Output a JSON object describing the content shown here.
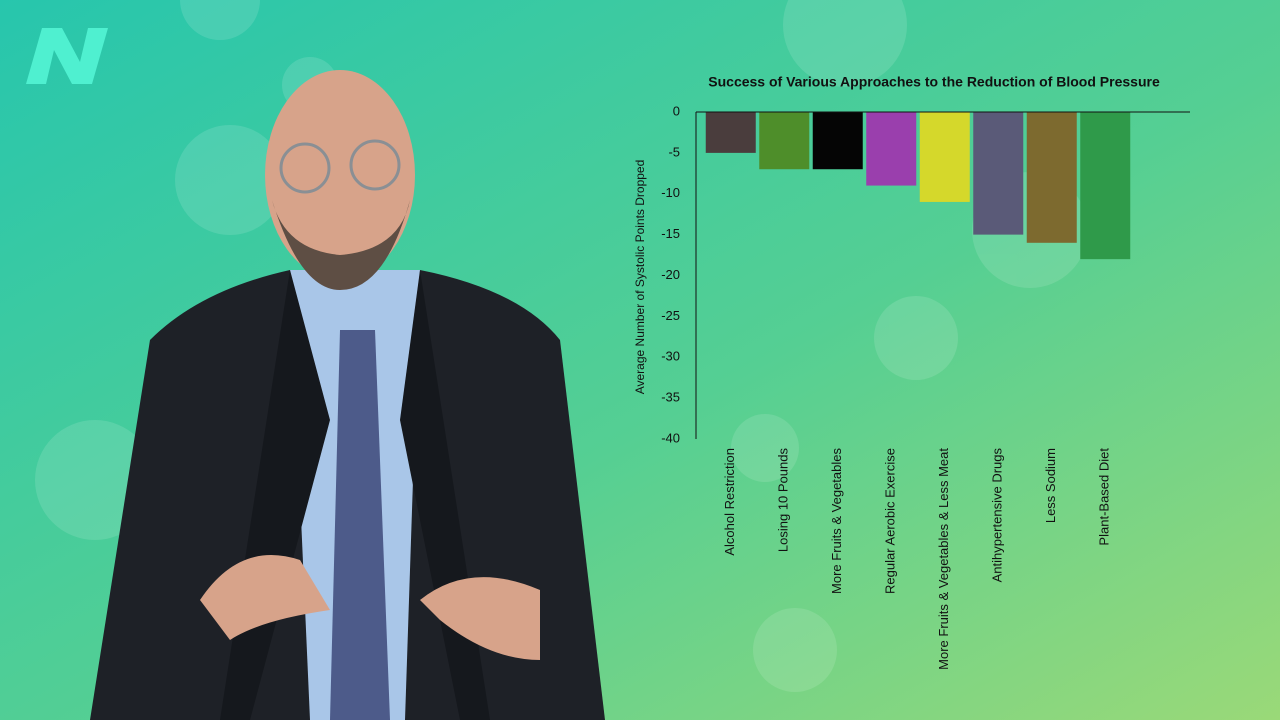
{
  "chart_data": {
    "type": "bar",
    "title": "Success of Various Approaches to the Reduction of Blood Pressure",
    "y_label": "Average Number of Systolic Points Dropped",
    "categories": [
      "Alcohol Restriction",
      "Losing 10 Pounds",
      "More Fruits & Vegetables",
      "Regular Aerobic Exercise",
      "More Fruits & Vegetables & Less Meat",
      "Antihypertensive Drugs",
      "Less Sodium",
      "Plant-Based Diet"
    ],
    "values": [
      -5,
      -7,
      -7,
      -9,
      -11,
      -15,
      -16,
      -18
    ],
    "colors": [
      "#4a3d3d",
      "#4e8e2a",
      "#050505",
      "#9a3fad",
      "#d5d82b",
      "#5a5a78",
      "#7d6a2f",
      "#2f9a4a"
    ],
    "ylim": [
      -40,
      0
    ],
    "yticks": [
      0,
      -5,
      -10,
      -15,
      -20,
      -25,
      -30,
      -35,
      -40
    ],
    "grid": false
  }
}
